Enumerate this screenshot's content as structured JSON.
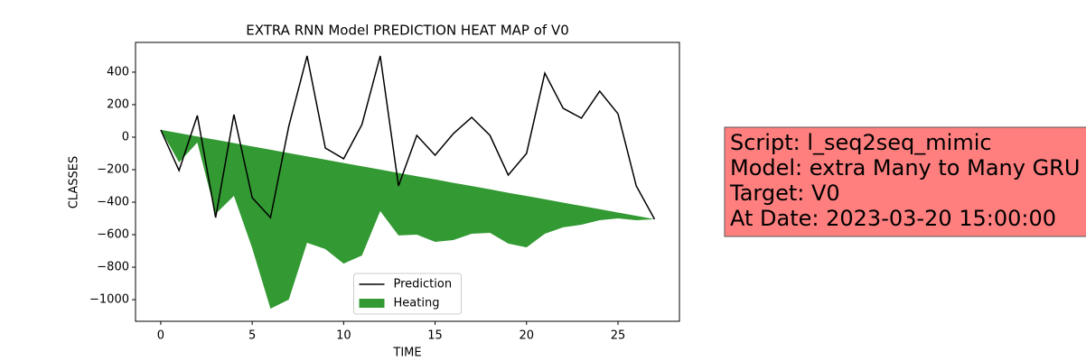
{
  "chart_data": {
    "type": "line-fill",
    "title": "EXTRA RNN Model PREDICTION HEAT MAP of V0",
    "x_label": "TIME",
    "y_label": "CLASSES",
    "x": [
      0,
      1,
      2,
      3,
      4,
      5,
      6,
      7,
      8,
      9,
      10,
      11,
      12,
      13,
      14,
      15,
      16,
      17,
      18,
      19,
      20,
      21,
      22,
      23,
      24,
      25,
      26,
      27
    ],
    "series": [
      {
        "name": "Prediction",
        "color": "#000000",
        "values": [
          45,
          -205,
          133,
          -495,
          139,
          -372,
          -495,
          67,
          500,
          -67,
          -133,
          78,
          500,
          -300,
          11,
          -111,
          22,
          122,
          11,
          -233,
          -100,
          394,
          178,
          117,
          283,
          144,
          -300,
          -505
        ]
      },
      {
        "name": "Heating",
        "color": "#339933",
        "upper": [
          45,
          25,
          4,
          -16,
          -36,
          -57,
          -77,
          -98,
          -118,
          -138,
          -159,
          -179,
          -199,
          -220,
          -240,
          -260,
          -281,
          -301,
          -321,
          -342,
          -362,
          -382,
          -403,
          -423,
          -443,
          -464,
          -484,
          -505
        ],
        "lower": [
          45,
          -155,
          -33,
          -472,
          -361,
          -683,
          -1055,
          -1000,
          -650,
          -689,
          -778,
          -728,
          -455,
          -605,
          -600,
          -644,
          -633,
          -594,
          -589,
          -655,
          -678,
          -594,
          -555,
          -539,
          -511,
          -500,
          -511,
          -505
        ]
      }
    ],
    "xlim": [
      -1.38,
      28.36
    ],
    "ylim": [
      -1133,
      583
    ],
    "xticks": [
      0,
      5,
      10,
      15,
      20,
      25
    ],
    "yticks": [
      {
        "value": -1000,
        "label": "−1000"
      },
      {
        "value": -800,
        "label": "−800"
      },
      {
        "value": -600,
        "label": "−600"
      },
      {
        "value": -400,
        "label": "−400"
      },
      {
        "value": -200,
        "label": "−200"
      },
      0,
      200,
      400
    ],
    "legend": "lower center",
    "annotation": {
      "lines": [
        "Script: l_seq2seq_mimic",
        "Model: extra Many to Many GRU",
        "Target: V0",
        "At Date: 2023-03-20 15:00:00"
      ],
      "color": "#ff7f7f"
    }
  }
}
